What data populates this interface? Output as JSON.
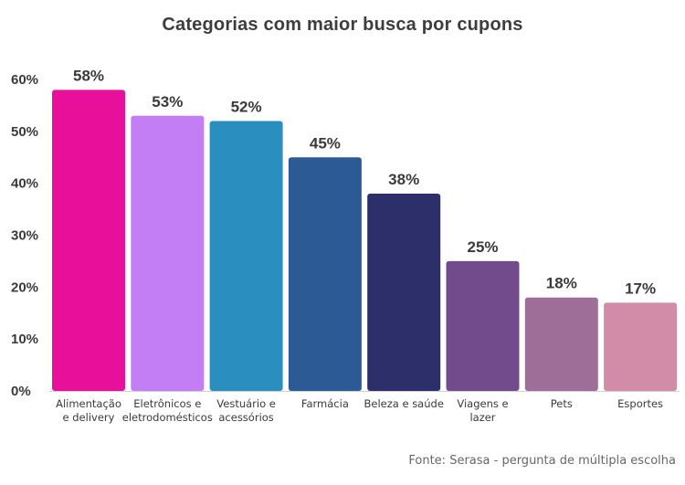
{
  "chart_data": {
    "type": "bar",
    "title": "Categorias com maior busca por cupons",
    "categories": [
      [
        "Alimentação",
        "e delivery"
      ],
      [
        "Eletrônicos e",
        "eletrodomésticos"
      ],
      [
        "Vestuário e",
        "acessórios"
      ],
      [
        "Farmácia"
      ],
      [
        "Beleza e saúde"
      ],
      [
        "Viagens e",
        "lazer"
      ],
      [
        "Pets"
      ],
      [
        "Esportes"
      ]
    ],
    "values": [
      58,
      53,
      52,
      45,
      38,
      25,
      18,
      17
    ],
    "value_labels": [
      "58%",
      "53%",
      "52%",
      "45%",
      "38%",
      "25%",
      "18%",
      "17%"
    ],
    "colors": [
      "#e8109a",
      "#c47ef5",
      "#2a8fbf",
      "#2b5a94",
      "#2c2f6a",
      "#724b8c",
      "#9e6e98",
      "#d38ca7"
    ],
    "yticks": [
      0,
      10,
      20,
      30,
      40,
      50,
      60
    ],
    "ytick_labels": [
      "0%",
      "10%",
      "20%",
      "30%",
      "40%",
      "50%",
      "60%"
    ],
    "ylim": [
      0,
      60
    ],
    "grid": false,
    "legend": "none",
    "source": "Fonte: Serasa - pergunta de múltipla escolha"
  }
}
